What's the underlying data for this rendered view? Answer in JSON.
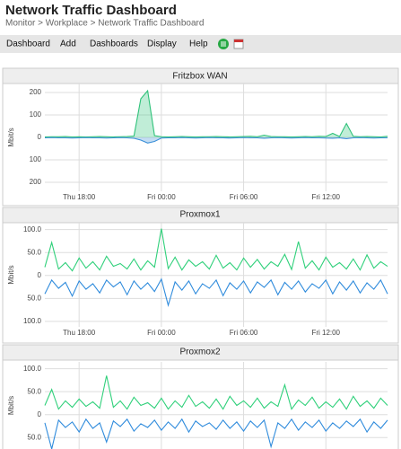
{
  "header": {
    "title": "Network Traffic Dashboard",
    "breadcrumb": "Monitor > Workplace > Network Traffic Dashboard"
  },
  "menu": [
    "Dashboard",
    "Add",
    "Dashboards",
    "Display",
    "Help"
  ],
  "chart_data": [
    {
      "type": "area",
      "title": "Fritzbox WAN",
      "y_label": "Mbit/s",
      "x": [
        2,
        2.5,
        3,
        3.5,
        4,
        4.5,
        5,
        5.5,
        6,
        6.5,
        7,
        7.5,
        8,
        8.5,
        9,
        9.5,
        10,
        10.5,
        11,
        11.5,
        12,
        12.5,
        13,
        13.5,
        14,
        14.5,
        15,
        15.5,
        16,
        16.5,
        17,
        17.5,
        18,
        18.5,
        19,
        19.5,
        20,
        20.5,
        21,
        21.5,
        22,
        22.5,
        23,
        23.5,
        24,
        24.5,
        25,
        25.5,
        26,
        26.5,
        27
      ],
      "xlim": [
        2,
        27
      ],
      "xticks": [
        {
          "value": 4.5,
          "label": "Thu 18:00"
        },
        {
          "value": 10.5,
          "label": "Fri 00:00"
        },
        {
          "value": 16.5,
          "label": "Fri 06:00"
        },
        {
          "value": 22.5,
          "label": "Fri 12:00"
        }
      ],
      "ylim": [
        -240,
        240
      ],
      "yticks": [
        200,
        100,
        0,
        {
          "value": -100,
          "label": "100"
        },
        {
          "value": -200,
          "label": "200"
        }
      ],
      "grid": true,
      "series": [
        {
          "color": "#2fc27a",
          "values": [
            2,
            3,
            3,
            4,
            2,
            3,
            2,
            3,
            4,
            3,
            2,
            3,
            4,
            6,
            172,
            208,
            8,
            3,
            2,
            3,
            4,
            3,
            2,
            3,
            3,
            4,
            3,
            2,
            3,
            4,
            5,
            3,
            10,
            4,
            3,
            3,
            2,
            3,
            4,
            3,
            5,
            4,
            18,
            4,
            62,
            5,
            3,
            4,
            3,
            2,
            5
          ]
        },
        {
          "color": "#3a8fd8",
          "values": [
            -2,
            -1,
            -2,
            -2,
            -3,
            -2,
            -1,
            -2,
            -2,
            -3,
            -2,
            -1,
            -2,
            -4,
            -12,
            -25,
            -18,
            -3,
            -2,
            -2,
            -1,
            -2,
            -3,
            -2,
            -1,
            -2,
            -2,
            -3,
            -2,
            -1,
            -2,
            -2,
            -4,
            -2,
            -1,
            -2,
            -3,
            -2,
            -1,
            -2,
            -2,
            -3,
            -4,
            -2,
            -6,
            -2,
            -1,
            -2,
            -3,
            -2,
            -2
          ]
        }
      ]
    },
    {
      "type": "line",
      "title": "Proxmox1",
      "y_label": "Mbit/s",
      "x": [
        2,
        2.5,
        3,
        3.5,
        4,
        4.5,
        5,
        5.5,
        6,
        6.5,
        7,
        7.5,
        8,
        8.5,
        9,
        9.5,
        10,
        10.5,
        11,
        11.5,
        12,
        12.5,
        13,
        13.5,
        14,
        14.5,
        15,
        15.5,
        16,
        16.5,
        17,
        17.5,
        18,
        18.5,
        19,
        19.5,
        20,
        20.5,
        21,
        21.5,
        22,
        22.5,
        23,
        23.5,
        24,
        24.5,
        25,
        25.5,
        26,
        26.5,
        27
      ],
      "xlim": [
        2,
        27
      ],
      "xticks": [
        {
          "value": 4.5,
          "label": "Thu 18:00"
        },
        {
          "value": 10.5,
          "label": "Fri 00:00"
        },
        {
          "value": 16.5,
          "label": "Fri 06:00"
        },
        {
          "value": 22.5,
          "label": "Fri 12:00"
        }
      ],
      "ylim": [
        -112,
        115
      ],
      "yticks": [
        {
          "value": 100,
          "label": "100.0"
        },
        {
          "value": 50,
          "label": "50.0"
        },
        0,
        {
          "value": -50,
          "label": "50.0"
        },
        {
          "value": -100,
          "label": "100.0"
        }
      ],
      "grid": true,
      "series": [
        {
          "color": "#2fd07a",
          "values": [
            18,
            72,
            14,
            28,
            10,
            38,
            16,
            30,
            12,
            42,
            20,
            26,
            14,
            36,
            12,
            32,
            18,
            102,
            15,
            40,
            12,
            34,
            20,
            30,
            14,
            44,
            16,
            28,
            12,
            38,
            18,
            35,
            14,
            30,
            20,
            46,
            13,
            74,
            16,
            32,
            12,
            40,
            18,
            28,
            14,
            36,
            12,
            45,
            16,
            30,
            20
          ]
        },
        {
          "color": "#2f8bdc",
          "values": [
            -40,
            -10,
            -28,
            -15,
            -45,
            -12,
            -30,
            -18,
            -38,
            -10,
            -25,
            -14,
            -42,
            -12,
            -30,
            -16,
            -35,
            -8,
            -65,
            -14,
            -32,
            -12,
            -40,
            -18,
            -28,
            -10,
            -44,
            -16,
            -30,
            -12,
            -38,
            -14,
            -26,
            -10,
            -42,
            -15,
            -30,
            -12,
            -36,
            -18,
            -28,
            -10,
            -40,
            -14,
            -32,
            -12,
            -38,
            -16,
            -30,
            -10,
            -40
          ]
        }
      ]
    },
    {
      "type": "line",
      "title": "Proxmox2",
      "y_label": "Mbit/s",
      "x": [
        2,
        2.5,
        3,
        3.5,
        4,
        4.5,
        5,
        5.5,
        6,
        6.5,
        7,
        7.5,
        8,
        8.5,
        9,
        9.5,
        10,
        10.5,
        11,
        11.5,
        12,
        12.5,
        13,
        13.5,
        14,
        14.5,
        15,
        15.5,
        16,
        16.5,
        17,
        17.5,
        18,
        18.5,
        19,
        19.5,
        20,
        20.5,
        21,
        21.5,
        22,
        22.5,
        23,
        23.5,
        24,
        24.5,
        25,
        25.5,
        26,
        26.5,
        27
      ],
      "xlim": [
        2,
        27
      ],
      "xticks": [
        4.5,
        10.5,
        16.5,
        22.5
      ],
      "ylim": [
        -75,
        115
      ],
      "yticks": [
        {
          "value": 100,
          "label": "100.0"
        },
        {
          "value": 50,
          "label": "50.0"
        },
        0,
        {
          "value": -50,
          "label": "50.0"
        }
      ],
      "grid": true,
      "series": [
        {
          "color": "#2fd07a",
          "values": [
            20,
            55,
            12,
            30,
            16,
            34,
            18,
            28,
            14,
            85,
            16,
            30,
            12,
            38,
            20,
            26,
            14,
            36,
            12,
            30,
            16,
            42,
            18,
            28,
            14,
            34,
            12,
            40,
            20,
            30,
            16,
            36,
            14,
            28,
            18,
            65,
            12,
            32,
            20,
            38,
            14,
            28,
            16,
            34,
            12,
            40,
            18,
            30,
            14,
            36,
            20
          ]
        },
        {
          "color": "#2f8bdc",
          "values": [
            -18,
            -75,
            -12,
            -28,
            -16,
            -38,
            -10,
            -30,
            -18,
            -60,
            -14,
            -26,
            -10,
            -36,
            -20,
            -28,
            -12,
            -34,
            -16,
            -30,
            -10,
            -38,
            -14,
            -26,
            -18,
            -32,
            -12,
            -30,
            -16,
            -36,
            -14,
            -28,
            -12,
            -70,
            -18,
            -30,
            -10,
            -34,
            -16,
            -28,
            -12,
            -36,
            -18,
            -30,
            -14,
            -26,
            -10,
            -38,
            -16,
            -30,
            -12
          ]
        }
      ]
    }
  ]
}
